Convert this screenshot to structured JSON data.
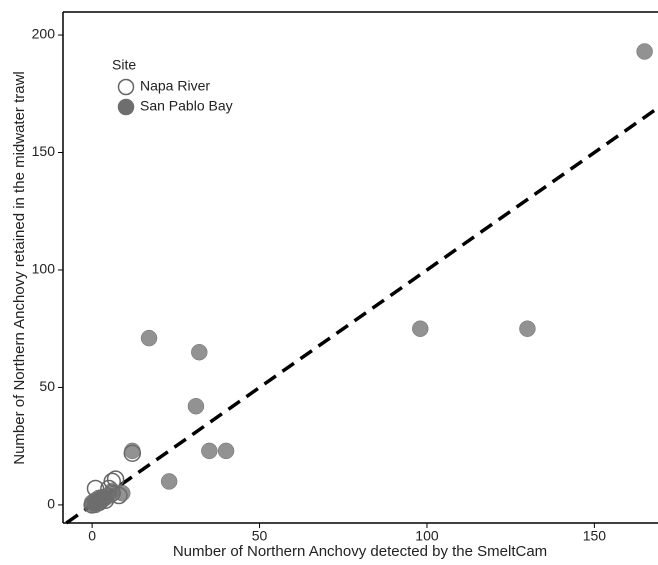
{
  "chart_data": {
    "type": "scatter",
    "x_label": "Number of Northern Anchovy detected by the SmeltCam",
    "y_label": "Number of Northern Anchovy retained in the midwater trawl",
    "legend_title": "Site",
    "legend_position": "upper left",
    "xlim": [
      -8.7,
      169
    ],
    "ylim": [
      -7.7,
      209.8
    ],
    "xticks": [
      0,
      50,
      100,
      150
    ],
    "yticks": [
      0,
      50,
      100,
      150,
      200
    ],
    "series": [
      {
        "name": "Napa River",
        "color": "#666666",
        "filled": false,
        "x": [
          12,
          7,
          6,
          5,
          1,
          8,
          3,
          2,
          0,
          4,
          6
        ],
        "values": [
          22,
          11,
          10,
          7,
          7,
          4,
          3,
          1,
          0,
          2,
          5
        ]
      },
      {
        "name": "San Pablo Bay",
        "color": "#6e6e6e",
        "filled": true,
        "x": [
          165,
          98,
          130,
          17,
          32,
          31,
          35,
          40,
          23,
          12,
          9,
          3,
          2,
          1,
          0,
          0,
          1,
          2,
          3,
          4,
          5,
          6,
          1,
          2
        ],
        "values": [
          193,
          75,
          75,
          71,
          65,
          42,
          23,
          23,
          10,
          23,
          5,
          3,
          2,
          1,
          0,
          1,
          0,
          1,
          2,
          3,
          4,
          6,
          2,
          3
        ]
      }
    ]
  }
}
